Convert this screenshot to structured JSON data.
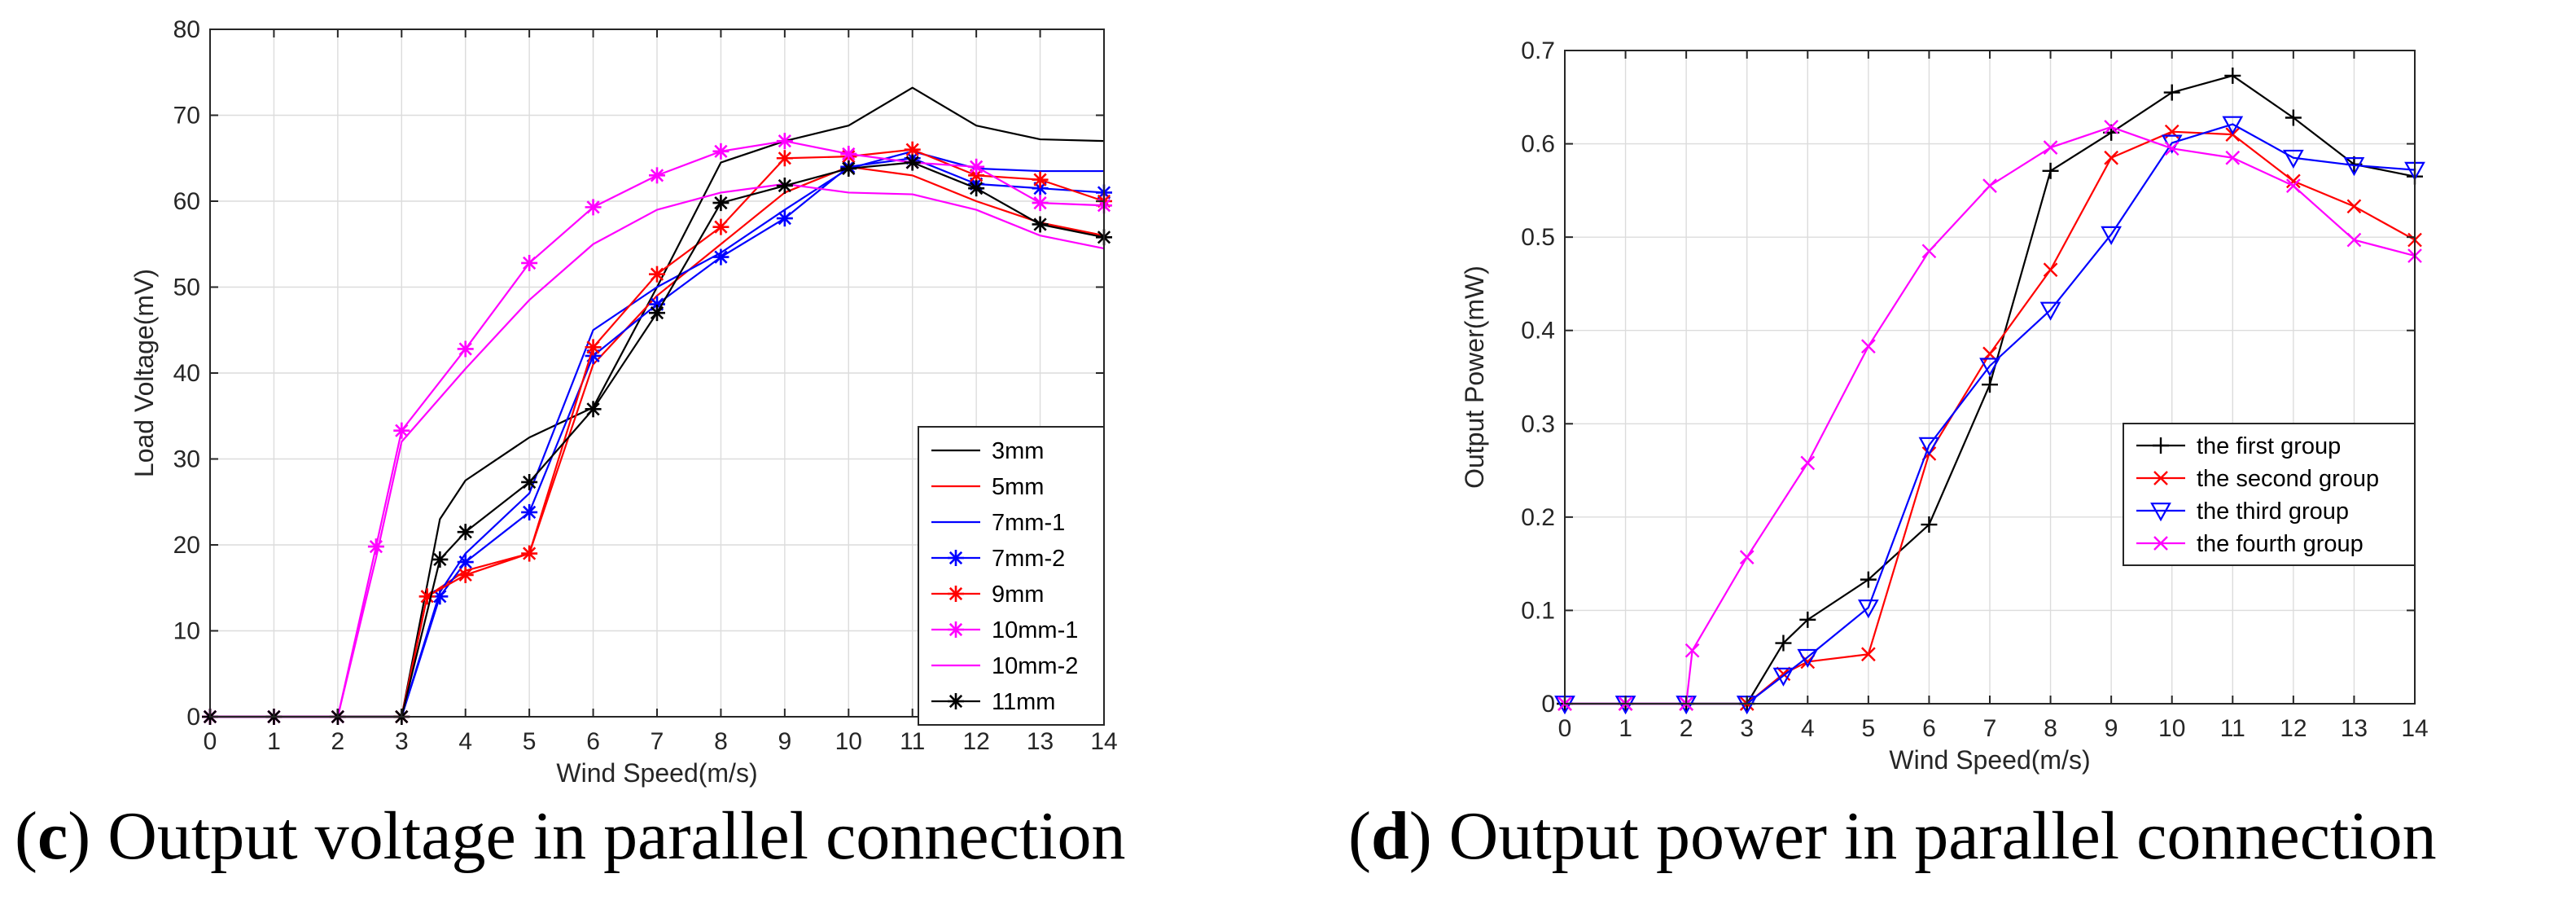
{
  "captions": {
    "c": {
      "prefix": "(",
      "letter": "c",
      "text": ") Output voltage in parallel connection"
    },
    "d": {
      "prefix": "(",
      "letter": "d",
      "text": ") Output power in parallel connection"
    }
  },
  "chart_data": [
    {
      "id": "voltage",
      "type": "line",
      "title": "",
      "xlabel": "Wind Speed(m/s)",
      "ylabel": "Load Voltage(mV)",
      "xlim": [
        0,
        14
      ],
      "ylim": [
        0,
        80
      ],
      "xticks": [
        0,
        1,
        2,
        3,
        4,
        5,
        6,
        7,
        8,
        9,
        10,
        11,
        12,
        13,
        14
      ],
      "yticks": [
        0,
        10,
        20,
        30,
        40,
        50,
        60,
        70,
        80
      ],
      "grid": true,
      "legend_position": "bottom-right",
      "series": [
        {
          "name": "3mm",
          "color": "#000000",
          "marker": "none",
          "x": [
            0,
            1,
            2,
            3,
            3.6,
            4,
            5,
            6,
            7,
            8,
            9,
            10,
            11,
            12,
            13,
            14
          ],
          "y": [
            0,
            0,
            0,
            0,
            23,
            27.5,
            32.5,
            36,
            50,
            64.5,
            67,
            68.8,
            73.2,
            68.8,
            67.2,
            67
          ]
        },
        {
          "name": "5mm",
          "color": "#ff0000",
          "marker": "none",
          "x": [
            0,
            1,
            2,
            3,
            3.4,
            4,
            5,
            6,
            7,
            8,
            9,
            10,
            11,
            12,
            13,
            14
          ],
          "y": [
            0,
            0,
            0,
            0,
            14,
            17,
            19,
            41,
            49,
            55,
            61,
            64,
            63,
            60,
            57.5,
            56
          ]
        },
        {
          "name": "7mm-1",
          "color": "#0000ff",
          "marker": "none",
          "x": [
            0,
            1,
            2,
            3,
            3.6,
            4,
            5,
            6,
            7,
            8,
            9,
            10,
            11,
            12,
            13,
            14
          ],
          "y": [
            0,
            0,
            0,
            0,
            14.5,
            19,
            26,
            45,
            50,
            54,
            59,
            63.8,
            65.8,
            63.8,
            63.5,
            63.5
          ]
        },
        {
          "name": "7mm-2",
          "color": "#0000ff",
          "marker": "star",
          "x": [
            0,
            1,
            2,
            3,
            3.6,
            4,
            5,
            6,
            7,
            8,
            9,
            10,
            11,
            12,
            13,
            14
          ],
          "y": [
            0,
            0,
            0,
            0,
            14,
            18,
            23.8,
            42,
            48,
            53.5,
            58,
            64,
            65,
            62,
            61.5,
            61
          ]
        },
        {
          "name": "9mm",
          "color": "#ff0000",
          "marker": "star",
          "x": [
            0,
            1,
            2,
            3,
            3.4,
            4,
            5,
            6,
            7,
            8,
            9,
            10,
            11,
            12,
            13,
            14
          ],
          "y": [
            0,
            0,
            0,
            0,
            14,
            16.5,
            19,
            43,
            51.5,
            57,
            65,
            65.2,
            66,
            63,
            62.5,
            60
          ]
        },
        {
          "name": "10mm-1",
          "color": "#ff00ff",
          "marker": "star",
          "x": [
            0,
            1,
            2,
            2.6,
            3,
            4,
            5,
            6,
            7,
            8,
            9,
            10,
            11,
            12,
            13,
            14
          ],
          "y": [
            0,
            0,
            0,
            19.8,
            33.3,
            42.8,
            52.8,
            59.3,
            63,
            65.8,
            67,
            65.5,
            64.5,
            64,
            59.8,
            59.5
          ]
        },
        {
          "name": "10mm-2",
          "color": "#ff00ff",
          "marker": "none",
          "x": [
            0,
            1,
            2,
            2.6,
            3,
            4,
            5,
            6,
            7,
            8,
            9,
            10,
            11,
            12,
            13,
            14
          ],
          "y": [
            0,
            0,
            0,
            18.5,
            32,
            40.5,
            48.5,
            55,
            59,
            61,
            62,
            61,
            60.8,
            59,
            56,
            54.5
          ]
        },
        {
          "name": "11mm",
          "color": "#000000",
          "marker": "star",
          "x": [
            0,
            1,
            2,
            3,
            3.6,
            4,
            5,
            6,
            7,
            8,
            9,
            10,
            11,
            12,
            13,
            14
          ],
          "y": [
            0,
            0,
            0,
            0,
            18.3,
            21.5,
            27.3,
            35.8,
            47,
            59.8,
            61.8,
            63.8,
            64.5,
            61.5,
            57.3,
            55.8
          ]
        }
      ]
    },
    {
      "id": "power",
      "type": "line",
      "title": "",
      "xlabel": "Wind Speed(m/s)",
      "ylabel": "Output Power(mW)",
      "xlim": [
        0,
        14
      ],
      "ylim": [
        0,
        0.7
      ],
      "xticks": [
        0,
        1,
        2,
        3,
        4,
        5,
        6,
        7,
        8,
        9,
        10,
        11,
        12,
        13,
        14
      ],
      "yticks": [
        0,
        0.1,
        0.2,
        0.3,
        0.4,
        0.5,
        0.6,
        0.7
      ],
      "grid": true,
      "legend_position": "center-right",
      "series": [
        {
          "name": "the first group",
          "color": "#000000",
          "marker": "plus",
          "x": [
            0,
            1,
            2,
            3,
            3.6,
            4,
            5,
            6,
            7,
            8,
            9,
            10,
            11,
            12,
            13,
            14
          ],
          "y": [
            0,
            0,
            0,
            0,
            0.065,
            0.09,
            0.133,
            0.192,
            0.342,
            0.571,
            0.612,
            0.655,
            0.673,
            0.628,
            0.578,
            0.565
          ]
        },
        {
          "name": "the second group",
          "color": "#ff0000",
          "marker": "x",
          "x": [
            0,
            1,
            2,
            3,
            3.6,
            4,
            5,
            6,
            7,
            8,
            9,
            10,
            11,
            12,
            13,
            14
          ],
          "y": [
            0,
            0,
            0,
            0,
            0.032,
            0.045,
            0.053,
            0.268,
            0.375,
            0.465,
            0.585,
            0.613,
            0.61,
            0.56,
            0.533,
            0.497
          ]
        },
        {
          "name": "the third group",
          "color": "#0000ff",
          "marker": "triangle",
          "x": [
            0,
            1,
            2,
            3,
            3.6,
            4,
            5,
            6,
            7,
            8,
            9,
            10,
            11,
            12,
            13,
            14
          ],
          "y": [
            0,
            0,
            0,
            0,
            0.03,
            0.05,
            0.103,
            0.277,
            0.362,
            0.422,
            0.503,
            0.601,
            0.621,
            0.585,
            0.577,
            0.572
          ]
        },
        {
          "name": "the fourth group",
          "color": "#ff00ff",
          "marker": "x",
          "x": [
            0,
            1,
            2,
            2.1,
            3,
            4,
            5,
            6,
            7,
            8,
            9,
            10,
            11,
            12,
            13,
            14
          ],
          "y": [
            0,
            0,
            0,
            0.057,
            0.157,
            0.258,
            0.383,
            0.485,
            0.555,
            0.596,
            0.618,
            0.595,
            0.585,
            0.555,
            0.497,
            0.48
          ]
        }
      ]
    }
  ]
}
